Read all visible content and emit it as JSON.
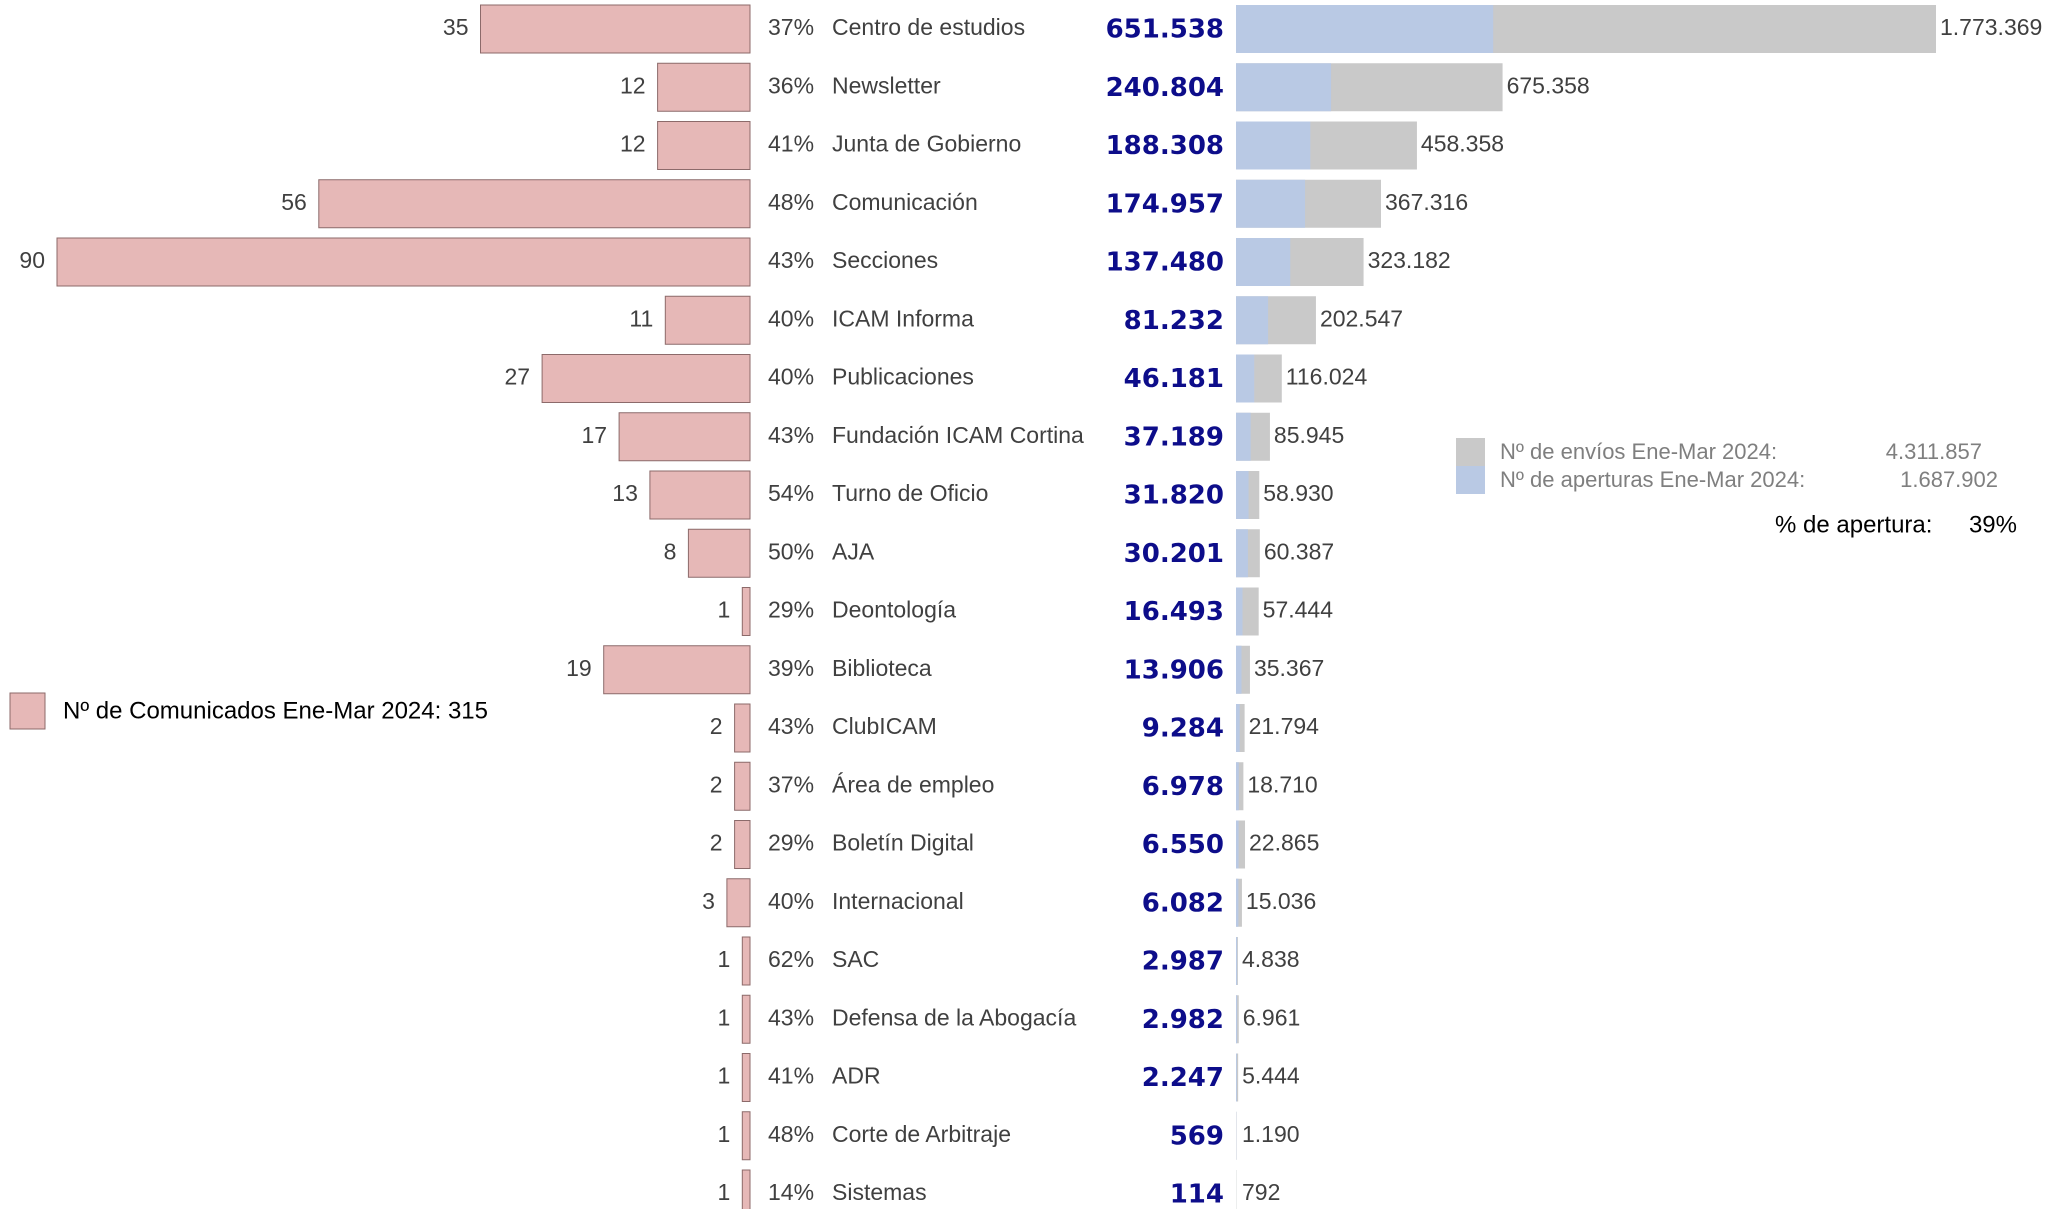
{
  "chart_data": {
    "type": "bar",
    "categories": [
      "Centro de estudios",
      "Newsletter",
      "Junta de Gobierno",
      "Comunicación",
      "Secciones",
      "ICAM Informa",
      "Publicaciones",
      "Fundación ICAM Cortina",
      "Turno de Oficio",
      "AJA",
      "Deontología",
      "Biblioteca",
      "ClubICAM",
      "Área de empleo",
      "Boletín Digital",
      "Internacional",
      "SAC",
      "Defensa de la Abogacía",
      "ADR",
      "Corte de Arbitraje",
      "Sistemas"
    ],
    "series": [
      {
        "name": "Nº de Comunicados Ene-Mar 2024: 315",
        "color": "#e6b8b7",
        "values": [
          35,
          12,
          12,
          56,
          90,
          11,
          27,
          17,
          13,
          8,
          1,
          19,
          2,
          2,
          2,
          3,
          1,
          1,
          1,
          1,
          1
        ]
      },
      {
        "values": [
          37,
          36,
          41,
          48,
          43,
          40,
          40,
          43,
          54,
          50,
          29,
          39,
          43,
          37,
          29,
          40,
          62,
          43,
          41,
          48,
          14
        ],
        "value_labels": [
          "37%",
          "36%",
          "41%",
          "48%",
          "43%",
          "40%",
          "40%",
          "43%",
          "54%",
          "50%",
          "29%",
          "39%",
          "43%",
          "37%",
          "29%",
          "40%",
          "62%",
          "43%",
          "41%",
          "48%",
          "14%"
        ]
      },
      {
        "name": "Nº de aperturas Ene-Mar 2024:",
        "color": "#b9c9e4",
        "total": 1687902,
        "total_label": "1.687.902",
        "values": [
          651538,
          240804,
          188308,
          174957,
          137480,
          81232,
          46181,
          37189,
          31820,
          30201,
          16493,
          13906,
          9284,
          6978,
          6550,
          6082,
          2987,
          2982,
          2247,
          569,
          114
        ],
        "value_labels": [
          "651.538",
          "240.804",
          "188.308",
          "174.957",
          "137.480",
          "81.232",
          "46.181",
          "37.189",
          "31.820",
          "30.201",
          "16.493",
          "13.906",
          "9.284",
          "6.978",
          "6.550",
          "6.082",
          "2.987",
          "2.982",
          "2.247",
          "569",
          "114"
        ]
      },
      {
        "name": "Nº de envíos Ene-Mar 2024:",
        "color": "#c9c9c9",
        "total": 4311857,
        "total_label": "4.311.857",
        "values": [
          1773369,
          675358,
          458358,
          367316,
          323182,
          202547,
          116024,
          85945,
          58930,
          60387,
          57444,
          35367,
          21794,
          18710,
          22865,
          15036,
          4838,
          6961,
          5444,
          1190,
          792
        ],
        "value_labels": [
          "1.773.369",
          "675.358",
          "458.358",
          "367.316",
          "323.182",
          "202.547",
          "116.024",
          "85.945",
          "58.930",
          "60.387",
          "57.444",
          "35.367",
          "21.794",
          "18.710",
          "22.865",
          "15.036",
          "4.838",
          "6.961",
          "5.444",
          "1.190",
          "792"
        ]
      }
    ],
    "open_rate_text": "% de apertura:",
    "open_rate": 39,
    "open_rate_label": "39%"
  }
}
